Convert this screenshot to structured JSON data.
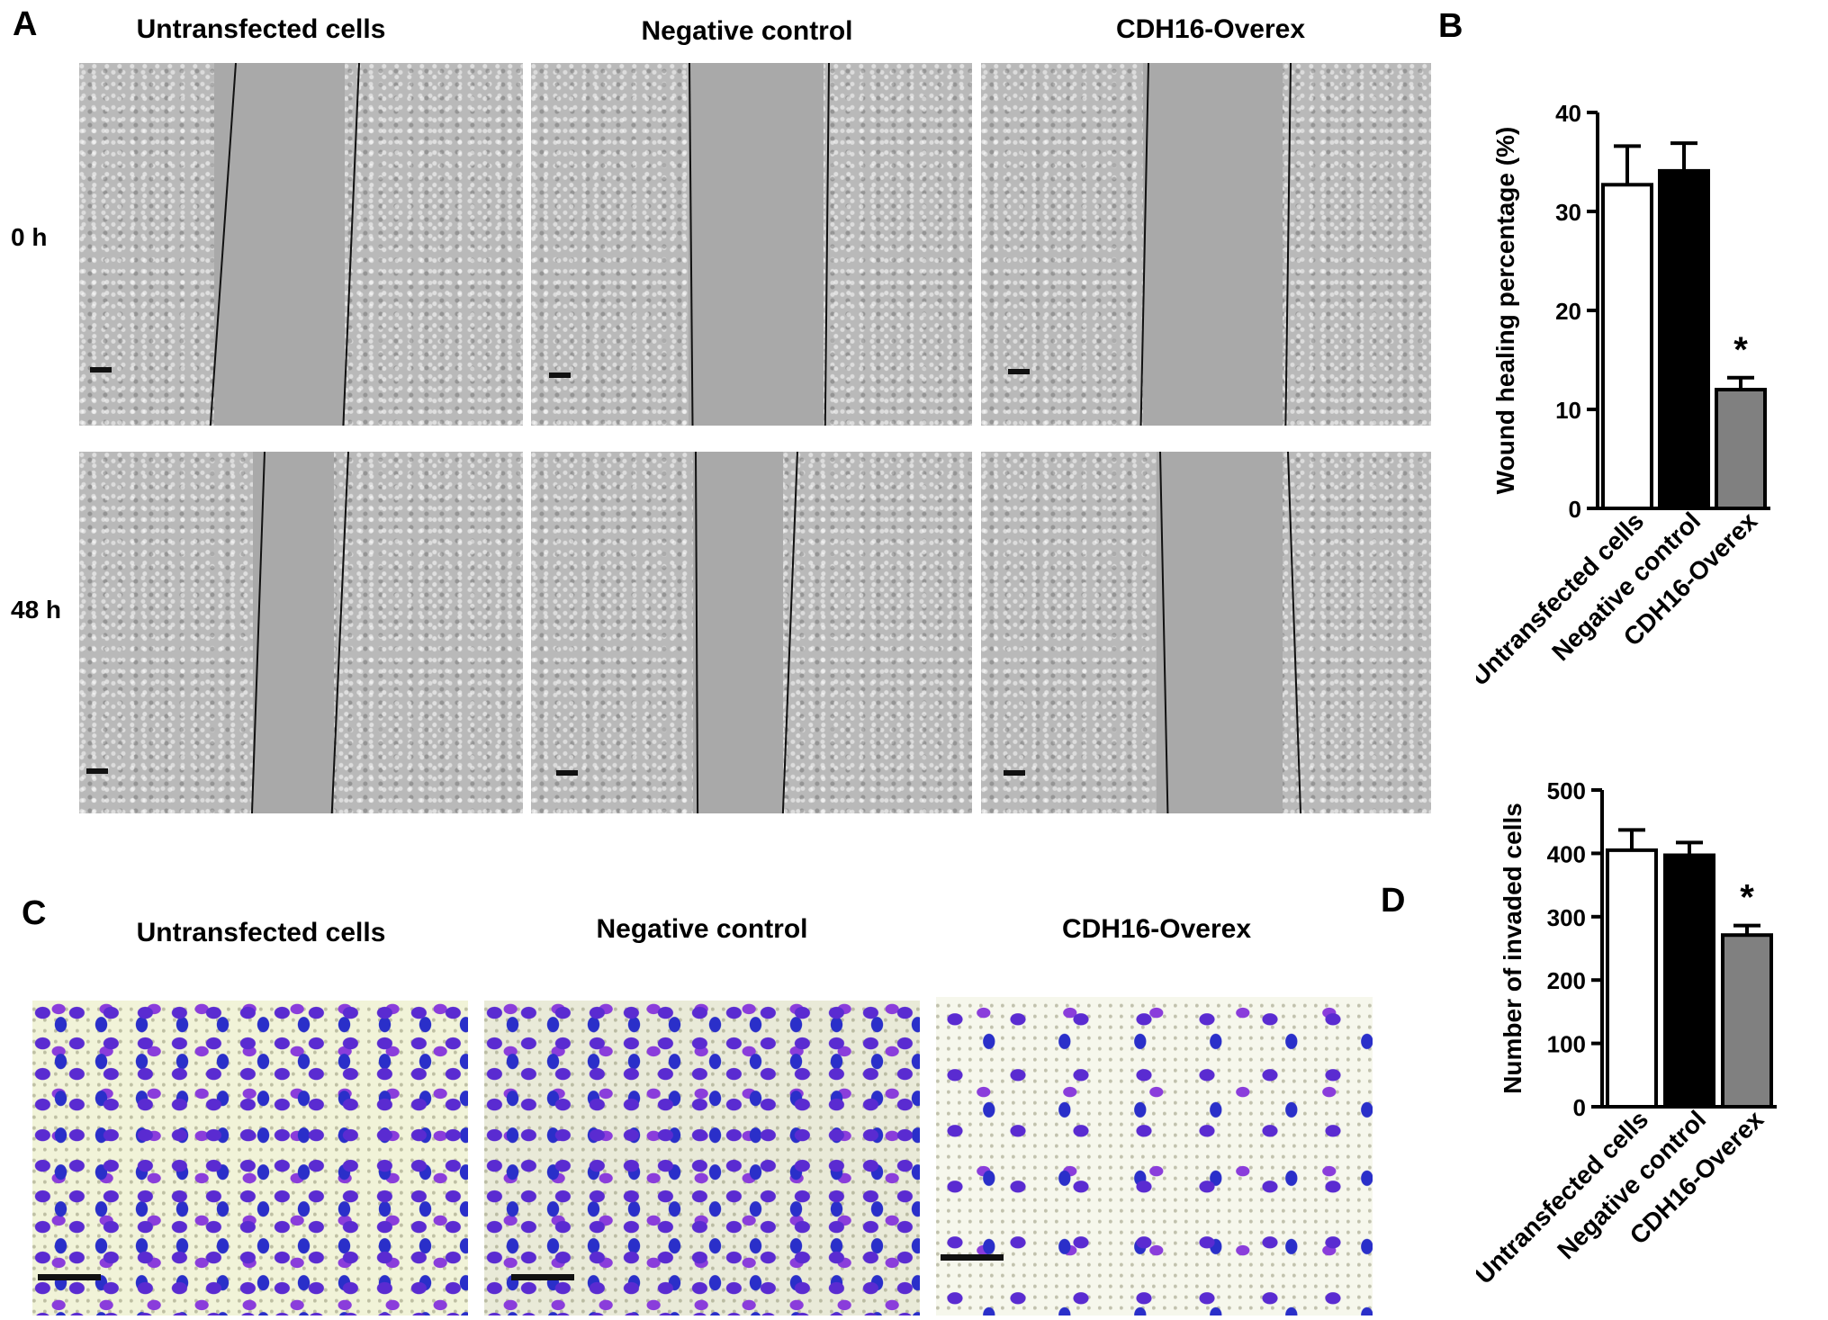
{
  "panels": {
    "A": {
      "letter": "A",
      "columns": [
        "Untransfected cells",
        "Negative control",
        "CDH16-Overex"
      ],
      "rows": [
        "0 h",
        "48 h"
      ]
    },
    "B": {
      "letter": "B"
    },
    "C": {
      "letter": "C",
      "columns": [
        "Untransfected cells",
        "Negative control",
        "CDH16-Overex"
      ]
    },
    "D": {
      "letter": "D"
    }
  },
  "chart_data": [
    {
      "type": "bar",
      "panel": "B",
      "categories": [
        "Untransfected cells",
        "Negative control",
        "CDH16-Overex"
      ],
      "values": [
        32.7,
        34.1,
        12.0
      ],
      "errors": [
        3.9,
        2.8,
        1.2
      ],
      "significance": [
        "",
        "",
        "*"
      ],
      "ylabel": "Wound healing percentage (%)",
      "ylim": [
        0,
        40
      ],
      "yticks": [
        "0",
        "10",
        "20",
        "30",
        "40"
      ],
      "bar_colors": [
        "#ffffff",
        "#000000",
        "#808080"
      ]
    },
    {
      "type": "bar",
      "panel": "D",
      "categories": [
        "Untransfected cells",
        "Negative control",
        "CDH16-Overex"
      ],
      "values": [
        405,
        397,
        271
      ],
      "errors": [
        32,
        20,
        15
      ],
      "significance": [
        "",
        "",
        "*"
      ],
      "ylabel": "Number of invaded cells",
      "ylim": [
        0,
        500
      ],
      "yticks": [
        "0",
        "100",
        "200",
        "300",
        "400",
        "500"
      ],
      "bar_colors": [
        "#ffffff",
        "#000000",
        "#808080"
      ]
    }
  ]
}
